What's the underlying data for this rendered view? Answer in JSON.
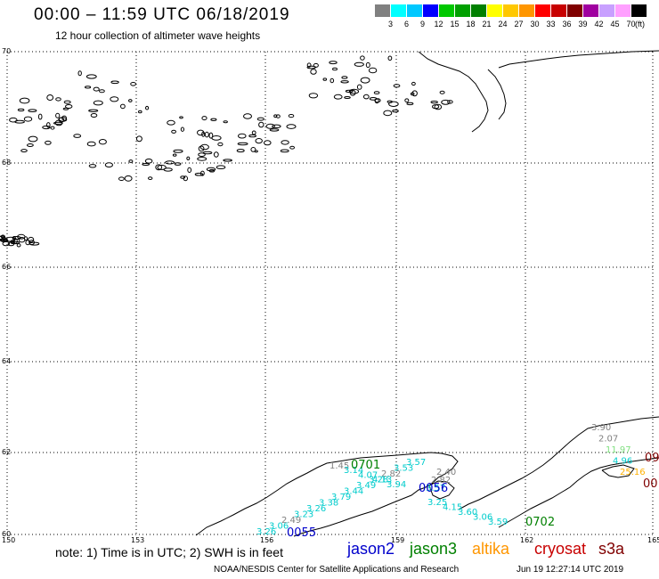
{
  "header": {
    "title": "00:00 – 11:59 UTC 06/18/2019",
    "subtitle": "12 hour collection of altimeter wave heights"
  },
  "scale": {
    "unit": "(ft)",
    "bins": [
      {
        "label": "3",
        "color": "#808080"
      },
      {
        "label": "6",
        "color": "#00ffff"
      },
      {
        "label": "9",
        "color": "#00c8ff"
      },
      {
        "label": "12",
        "color": "#0000ff"
      },
      {
        "label": "15",
        "color": "#00c800"
      },
      {
        "label": "18",
        "color": "#00a000"
      },
      {
        "label": "21",
        "color": "#008000"
      },
      {
        "label": "24",
        "color": "#ffff00"
      },
      {
        "label": "27",
        "color": "#ffc800"
      },
      {
        "label": "30",
        "color": "#ff9600"
      },
      {
        "label": "33",
        "color": "#ff0000"
      },
      {
        "label": "36",
        "color": "#c80000"
      },
      {
        "label": "39",
        "color": "#800000"
      },
      {
        "label": "42",
        "color": "#a000a0"
      },
      {
        "label": "45",
        "color": "#c8a0ff"
      },
      {
        "label": "70",
        "color": "#ffa0ff"
      },
      {
        "label": "",
        "color": "#000000"
      }
    ]
  },
  "axes": {
    "lat_labels": [
      "70",
      "68",
      "66",
      "64",
      "62",
      "60"
    ],
    "lon_labels": [
      "150",
      "153",
      "156",
      "159",
      "162",
      "165"
    ]
  },
  "tracks": [
    {
      "id": "jason2-0055",
      "color": "#0000cc",
      "time": "0055",
      "values": [
        {
          "v": "3.26",
          "c": "#00cccc"
        },
        {
          "v": "3.06",
          "c": "#00cccc"
        },
        {
          "v": "2.49",
          "c": "#808080"
        },
        {
          "v": "3.23",
          "c": "#00cccc"
        },
        {
          "v": "3.26",
          "c": "#00cccc"
        },
        {
          "v": "3.38",
          "c": "#00cccc"
        },
        {
          "v": "3.79",
          "c": "#00cccc"
        },
        {
          "v": "3.44",
          "c": "#00cccc"
        },
        {
          "v": "3.49",
          "c": "#00cccc"
        },
        {
          "v": "3.28",
          "c": "#00cccc"
        },
        {
          "v": "2.82",
          "c": "#808080"
        },
        {
          "v": "3.53",
          "c": "#00cccc"
        },
        {
          "v": "3.57",
          "c": "#00cccc"
        }
      ]
    },
    {
      "id": "jason3-0701",
      "color": "#008000",
      "time": "0701",
      "values": [
        {
          "v": "1.45",
          "c": "#808080"
        },
        {
          "v": "3.14",
          "c": "#00cccc"
        },
        {
          "v": "4.07",
          "c": "#00cccc"
        },
        {
          "v": "4.13",
          "c": "#00cccc"
        },
        {
          "v": "3.94",
          "c": "#00cccc"
        }
      ]
    },
    {
      "id": "jason2-0056",
      "color": "#0000cc",
      "time": "0056",
      "values": [
        {
          "v": "2.40",
          "c": "#808080"
        },
        {
          "v": "2.82",
          "c": "#808080"
        },
        {
          "v": "3.57",
          "c": "#00cccc"
        }
      ]
    },
    {
      "id": "jason3-0702",
      "color": "#008000",
      "time": "0702",
      "values": [
        {
          "v": "3.25",
          "c": "#00cccc"
        },
        {
          "v": "4.15",
          "c": "#00cccc"
        },
        {
          "v": "3.60",
          "c": "#00cccc"
        },
        {
          "v": "3.06",
          "c": "#00cccc"
        },
        {
          "v": "3.59",
          "c": "#00cccc"
        }
      ]
    },
    {
      "id": "east-stack",
      "color": "#808080",
      "time": "",
      "values": [
        {
          "v": "3.90",
          "c": "#808080"
        },
        {
          "v": "2.07",
          "c": "#808080"
        },
        {
          "v": "11.97",
          "c": "#80e080"
        },
        {
          "v": "4.96",
          "c": "#00cccc"
        },
        {
          "v": "25.16",
          "c": "#ffb000"
        }
      ]
    },
    {
      "id": "cryosat-east",
      "color": "#800000",
      "time": "09",
      "values": []
    },
    {
      "id": "cryosat-east2",
      "color": "#800000",
      "time": "00",
      "values": []
    }
  ],
  "footer": {
    "note": "note: 1) Time is in UTC; 2) SWH is in feet",
    "legend": [
      {
        "name": "jason2",
        "color": "#0000cc"
      },
      {
        "name": "jason3",
        "color": "#008000"
      },
      {
        "name": "altika",
        "color": "#ff9600"
      },
      {
        "name": "cryosat",
        "color": "#c80000"
      },
      {
        "name": "s3a",
        "color": "#800000"
      }
    ],
    "credit": "NOAA/NESDIS Center for Satellite Applications and Research",
    "timestamp": "Jun 19 12:27:14 UTC 2019"
  }
}
